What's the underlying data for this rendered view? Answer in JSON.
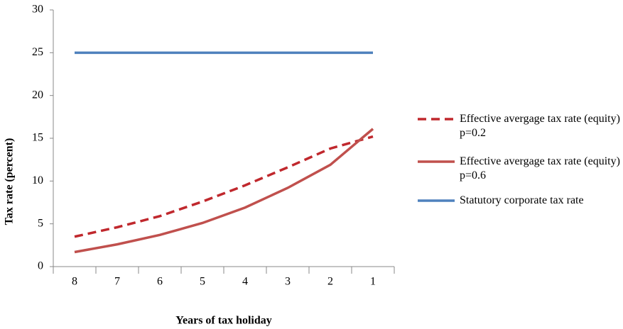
{
  "chart_data": {
    "type": "line",
    "x_label": "Years of tax holiday",
    "y_label": "Tax rate (percent)",
    "categories": [
      "8",
      "7",
      "6",
      "5",
      "4",
      "3",
      "2",
      "1"
    ],
    "series": [
      {
        "name": "Effective avergage  tax rate (equity) p=0.2",
        "color": "#c0282d",
        "style": "dashed",
        "values": [
          3.5,
          4.6,
          5.9,
          7.6,
          9.5,
          11.6,
          13.8,
          15.2
        ]
      },
      {
        "name": "Effective avergage  tax rate (equity) p=0.6",
        "color": "#c0504d",
        "style": "solid",
        "values": [
          1.7,
          2.6,
          3.7,
          5.1,
          6.9,
          9.2,
          11.9,
          16.1
        ]
      },
      {
        "name": "Statutory corporate tax rate",
        "color": "#4f81bd",
        "style": "solid",
        "values": [
          25,
          25,
          25,
          25,
          25,
          25,
          25,
          25
        ]
      }
    ],
    "ylim": [
      0,
      30
    ],
    "yticks": [
      0,
      5,
      10,
      15,
      20,
      25,
      30
    ],
    "grid": false,
    "legend": "right"
  }
}
